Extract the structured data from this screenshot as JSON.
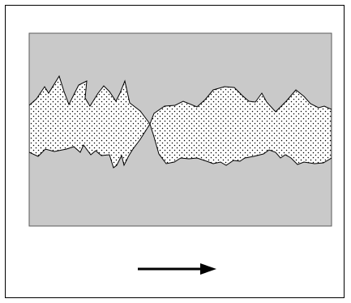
{
  "diagram": {
    "colors": {
      "outer_border": "#000000",
      "fill_background": "#c9c9c9",
      "panel_border": "#5a5a5a",
      "fracture_fill": "#ffffff",
      "fracture_stroke": "#000000",
      "dot_color": "#000000",
      "arrow_color": "#000000"
    },
    "icons": {
      "direction": "arrow-right-icon"
    }
  }
}
